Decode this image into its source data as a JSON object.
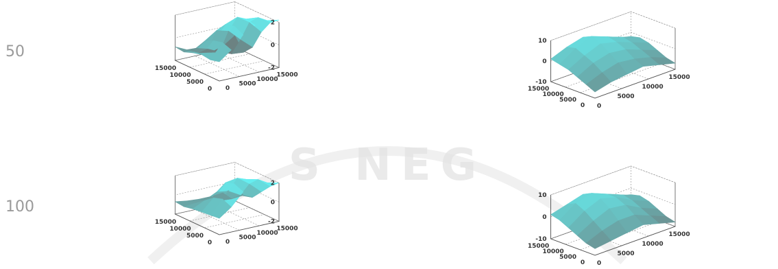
{
  "row_labels": [
    "50",
    "100"
  ],
  "watermark": {
    "text": "S NEG",
    "color": "#d9d9d9",
    "accent": "#f2d79a"
  },
  "colors": {
    "surface_high": "#66eef0",
    "surface_low": "#6d6d6d",
    "axis": "#555555",
    "grid": "#888888"
  },
  "chart_data": [
    {
      "type": "surface3d",
      "row": "50",
      "column": 1,
      "x_ticks": [
        "0",
        "5000",
        "10000",
        "15000"
      ],
      "y_ticks": [
        "0",
        "5000",
        "10000",
        "15000"
      ],
      "z_ticks": [
        "-2",
        "0",
        "2"
      ],
      "zlim": [
        -2,
        2
      ],
      "z_grid": [
        [
          -0.3,
          0.5,
          1.6,
          2.2,
          2.4,
          2.2
        ],
        [
          -0.5,
          0.8,
          2.0,
          2.4,
          2.3,
          1.6
        ],
        [
          -0.4,
          0.6,
          1.8,
          2.2,
          1.5,
          0.4
        ],
        [
          -0.6,
          0.2,
          0.9,
          0.6,
          -0.4,
          -1.3
        ],
        [
          -0.9,
          -0.8,
          -1.1,
          -1.6,
          -2.0,
          -2.1
        ],
        [
          -0.8,
          -1.3,
          -1.8,
          -2.0,
          -1.7,
          -1.0
        ]
      ]
    },
    {
      "type": "surface3d",
      "row": "50",
      "column": 2,
      "x_ticks": [
        "0",
        "5000",
        "10000",
        "15000"
      ],
      "y_ticks": [
        "0",
        "5000",
        "10000",
        "15000"
      ],
      "z_ticks": [
        "-10",
        "0",
        "10"
      ],
      "zlim": [
        -10,
        10
      ],
      "z_grid": [
        [
          -7,
          -5,
          -3,
          -1,
          0,
          1
        ],
        [
          -5,
          -2,
          1,
          3,
          5,
          4
        ],
        [
          -4,
          0,
          3,
          6,
          8,
          6
        ],
        [
          -3,
          -1,
          2,
          4,
          5,
          3
        ],
        [
          -5,
          -3,
          -1,
          1,
          2,
          0
        ],
        [
          -7,
          -6,
          -4,
          -2,
          -1,
          -2
        ]
      ]
    },
    {
      "type": "surface3d",
      "row": "100",
      "column": 1,
      "x_ticks": [
        "0",
        "5000",
        "10000",
        "15000"
      ],
      "y_ticks": [
        "0",
        "5000",
        "10000",
        "15000"
      ],
      "z_ticks": [
        "-2",
        "0",
        "2"
      ],
      "zlim": [
        -2,
        2
      ],
      "z_grid": [
        [
          -0.3,
          0.6,
          1.9,
          2.3,
          2.3,
          2.0
        ],
        [
          -0.4,
          1.0,
          2.3,
          2.5,
          2.2,
          1.2
        ],
        [
          -0.5,
          0.7,
          2.0,
          2.2,
          1.3,
          0.2
        ],
        [
          -0.6,
          0.0,
          0.6,
          0.4,
          -0.3,
          -0.8
        ],
        [
          -0.8,
          -0.7,
          -0.8,
          -1.0,
          -1.1,
          -1.0
        ],
        [
          -0.7,
          -0.9,
          -1.0,
          -1.0,
          -0.9,
          -0.7
        ]
      ]
    },
    {
      "type": "surface3d",
      "row": "100",
      "column": 2,
      "x_ticks": [
        "0",
        "5000",
        "10000",
        "15000"
      ],
      "y_ticks": [
        "0",
        "5000",
        "10000",
        "15000"
      ],
      "z_ticks": [
        "-10",
        "0",
        "10"
      ],
      "zlim": [
        -10,
        10
      ],
      "z_grid": [
        [
          -7,
          -6,
          -4,
          -2,
          0,
          1
        ],
        [
          -6,
          -3,
          0,
          3,
          5,
          3
        ],
        [
          -5,
          -1,
          3,
          6,
          7,
          5
        ],
        [
          -4,
          -1,
          2,
          4,
          4,
          2
        ],
        [
          -6,
          -4,
          -2,
          0,
          1,
          -1
        ],
        [
          -8,
          -7,
          -5,
          -3,
          -2,
          -3
        ]
      ]
    }
  ]
}
